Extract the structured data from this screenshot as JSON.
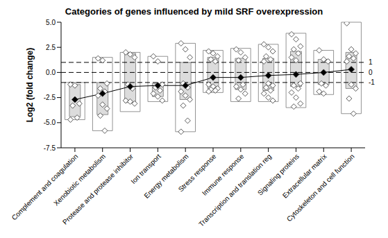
{
  "chart_data": {
    "type": "box",
    "title": "Categories of genes influenced by mild SRF overexpression",
    "y_label": "Log2 (fold change)",
    "categories": [
      "Complement and coagulation",
      "Xenobiotic metabolism",
      "Protease and protease inhibitor",
      "Ion transport",
      "Energy metabolism",
      "Stress response",
      "Immune response",
      "Transcription and translation reg",
      "Signaling proteins",
      "Extracellular matrix",
      "Cytoskeleton and cell function"
    ],
    "boxes": [
      {
        "min": -4.7,
        "q1": -4.4,
        "q3": -1.2,
        "max": -1.0
      },
      {
        "min": -5.8,
        "q1": -4.2,
        "q3": -1.0,
        "max": 1.5
      },
      {
        "min": -3.9,
        "q1": -3.0,
        "q3": 1.9,
        "max": 2.0
      },
      {
        "min": -2.9,
        "q1": -2.4,
        "q3": -1.1,
        "max": 1.6
      },
      {
        "min": -5.9,
        "q1": -2.7,
        "q3": 1.0,
        "max": 2.9
      },
      {
        "min": -2.0,
        "q1": -1.6,
        "q3": 1.5,
        "max": 2.2
      },
      {
        "min": -2.9,
        "q1": -1.7,
        "q3": 1.4,
        "max": 2.4
      },
      {
        "min": -2.9,
        "q1": -1.8,
        "q3": 1.4,
        "max": 2.8
      },
      {
        "min": -3.5,
        "q1": -1.4,
        "q3": 2.1,
        "max": 3.9
      },
      {
        "min": -2.2,
        "q1": -1.2,
        "q3": 1.3,
        "max": 2.2
      },
      {
        "min": -4.1,
        "q1": -1.6,
        "q3": 2.0,
        "max": 5.0
      }
    ],
    "means": [
      -2.7,
      -2.1,
      -1.4,
      -1.3,
      -1.3,
      -0.5,
      -0.5,
      -0.3,
      -0.2,
      0.0,
      0.3
    ],
    "points": [
      [
        -1.2,
        -1.3,
        -3.1,
        -3.3,
        -4.5,
        -4.7
      ],
      [
        1.4,
        1.2,
        -1.1,
        -1.6,
        -1.9,
        -2.3,
        -3.2,
        -3.6,
        -4.3,
        -5.8
      ],
      [
        2.0,
        1.8,
        1.5,
        -1.2,
        -1.6,
        -2.8,
        -2.9,
        -3.1
      ],
      [
        1.6,
        1.1,
        -1.2,
        -1.5,
        -1.8,
        -2.1,
        -2.4,
        -2.8
      ],
      [
        2.9,
        2.3,
        1.5,
        -1.1,
        -1.5,
        -1.9,
        -2.3,
        -2.7,
        -3.3,
        -4.8,
        -5.9
      ],
      [
        2.1,
        1.9,
        1.6,
        1.3,
        1.1,
        -1.2,
        -1.4,
        -1.6,
        -1.7,
        -1.8,
        -1.9
      ],
      [
        2.3,
        2.0,
        1.5,
        1.2,
        -1.2,
        -1.4,
        -1.7,
        -2.1,
        -2.6
      ],
      [
        2.8,
        2.5,
        2.1,
        1.6,
        1.3,
        1.1,
        -1.1,
        -1.3,
        -1.5,
        -1.8,
        -2.1,
        -2.5,
        -2.8
      ],
      [
        3.8,
        3.3,
        2.6,
        2.3,
        1.9,
        1.5,
        1.2,
        -1.1,
        -1.3,
        -1.6,
        -2.0,
        -2.5,
        -3.1,
        -3.4
      ],
      [
        2.2,
        1.3,
        1.1,
        -1.1,
        -1.3,
        -1.9,
        -2.1
      ],
      [
        4.9,
        2.3,
        1.9,
        1.6,
        1.4,
        1.1,
        -1.2,
        -1.6,
        -2.6,
        -4.1
      ]
    ],
    "marker": "diamond",
    "hlines": [
      {
        "value": 1,
        "label": "1",
        "line_style": "dashed"
      },
      {
        "value": 0,
        "label": "0",
        "line_style": "dashed"
      },
      {
        "value": -1,
        "label": "-1",
        "line_style": "dashed"
      }
    ],
    "ylim": [
      -7.5,
      5
    ],
    "yticks": [
      {
        "value": -7.5,
        "label": "-7.5"
      },
      {
        "value": -5,
        "label": "-5.0"
      },
      {
        "value": -2.5,
        "label": "-2.5"
      },
      {
        "value": 0,
        "label": "0.0"
      },
      {
        "value": 2.5,
        "label": "2.5"
      },
      {
        "value": 5,
        "label": "5.0"
      }
    ],
    "grid": false
  }
}
